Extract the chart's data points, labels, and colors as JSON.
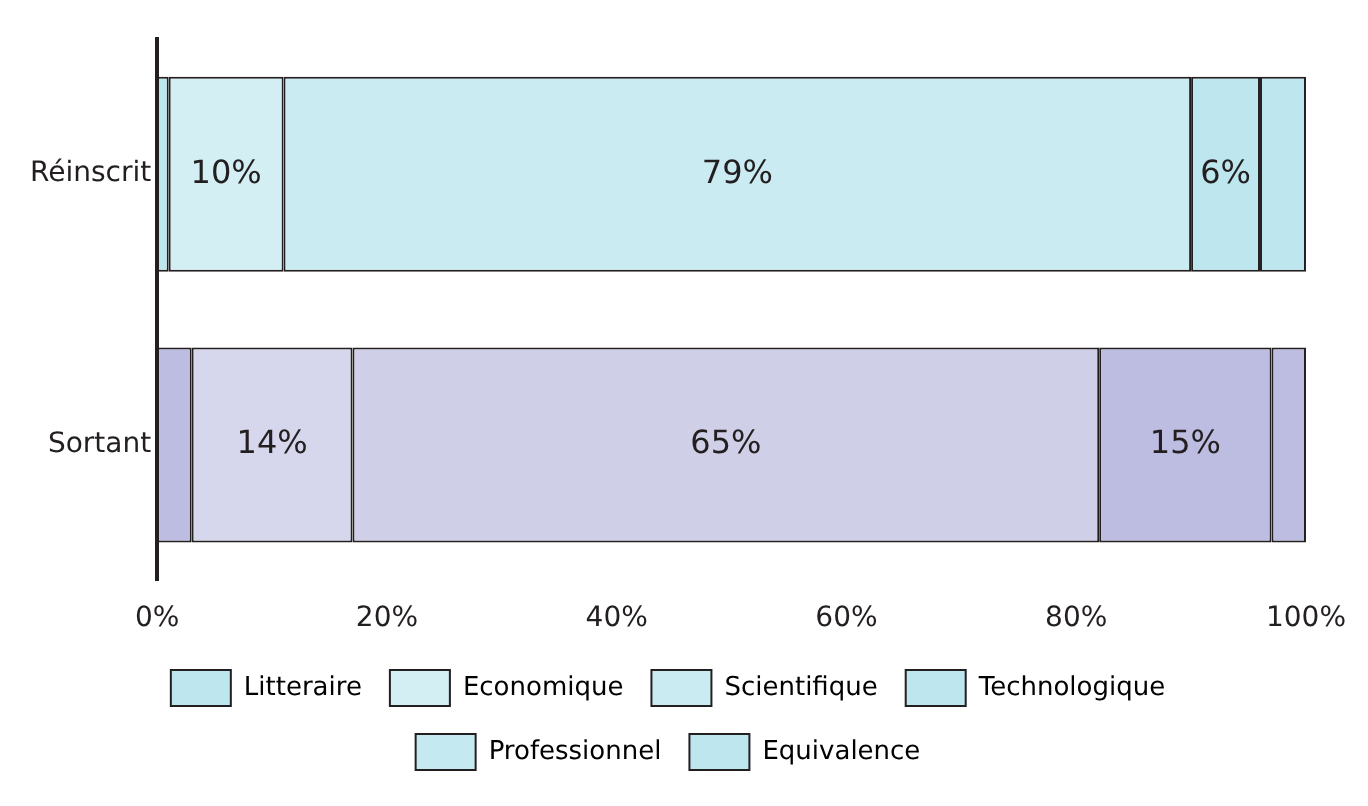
{
  "chart_data": {
    "type": "bar",
    "orientation": "horizontal",
    "stacked": true,
    "categories": [
      "Réinscrit",
      "Sortant"
    ],
    "series": [
      {
        "name": "Litteraire",
        "colors": [
          "#bde6ee",
          "#bcbde0"
        ],
        "values": [
          1,
          3
        ],
        "value_labels": [
          null,
          null
        ]
      },
      {
        "name": "Economique",
        "colors": [
          "#d3eff4",
          "#d6d7ec"
        ],
        "values": [
          10,
          14
        ],
        "value_labels": [
          "10%",
          "14%"
        ]
      },
      {
        "name": "Scientifique",
        "colors": [
          "#c9ebf1",
          "#cfcfe8"
        ],
        "values": [
          79,
          65
        ],
        "value_labels": [
          "79%",
          "65%"
        ]
      },
      {
        "name": "Technologique",
        "colors": [
          "#bde6ee",
          "#bcbde0"
        ],
        "values": [
          6,
          15
        ],
        "value_labels": [
          "6%",
          "15%"
        ]
      },
      {
        "name": "Professionnel",
        "colors": [
          "#c4e9f0",
          "#c4c5e4"
        ],
        "values": [
          0,
          0
        ],
        "value_labels": [
          null,
          null
        ]
      },
      {
        "name": "Equivalence",
        "colors": [
          "#bde6ee",
          "#bcbde0"
        ],
        "values": [
          4,
          3
        ],
        "value_labels": [
          null,
          null
        ]
      }
    ],
    "xlim": [
      0,
      100
    ],
    "xticks": [
      {
        "value": 0,
        "label": "0%"
      },
      {
        "value": 20,
        "label": "20%"
      },
      {
        "value": 40,
        "label": "40%"
      },
      {
        "value": 60,
        "label": "60%"
      },
      {
        "value": 80,
        "label": "80%"
      },
      {
        "value": 100,
        "label": "100%"
      }
    ],
    "grid": false,
    "legend": "bottom"
  }
}
